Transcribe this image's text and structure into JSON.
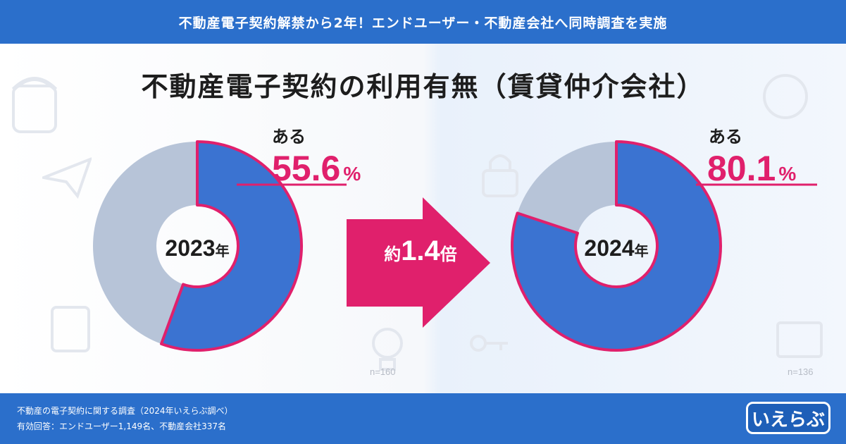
{
  "header": {
    "banner": "不動産電子契約解禁から2年！エンドユーザー・不動産会社へ同時調査を実施"
  },
  "chart_data": {
    "type": "pie",
    "title": "不動産電子契約の利用有無（賃貸仲介会社）",
    "comparison_label": {
      "prefix": "約",
      "value": "1.4",
      "suffix": "倍"
    },
    "charts": [
      {
        "year_label": "2023",
        "year_unit": "年",
        "highlight_label": "ある",
        "value": 55.6,
        "value_text": "55.6",
        "unit": "%",
        "sample": "n=160"
      },
      {
        "year_label": "2024",
        "year_unit": "年",
        "highlight_label": "ある",
        "value": 80.1,
        "value_text": "80.1",
        "unit": "%",
        "sample": "n=136"
      }
    ],
    "colors": {
      "highlight": "#3b73d1",
      "remainder": "#b7c4d8",
      "outline": "#e0206c"
    }
  },
  "footer": {
    "note_line1": "不動産の電子契約に関する調査（2024年いえらぶ調べ）",
    "note_line2": "有効回答：エンドユーザー1,149名、不動産会社337名",
    "logo_text": "いえらぶ"
  }
}
